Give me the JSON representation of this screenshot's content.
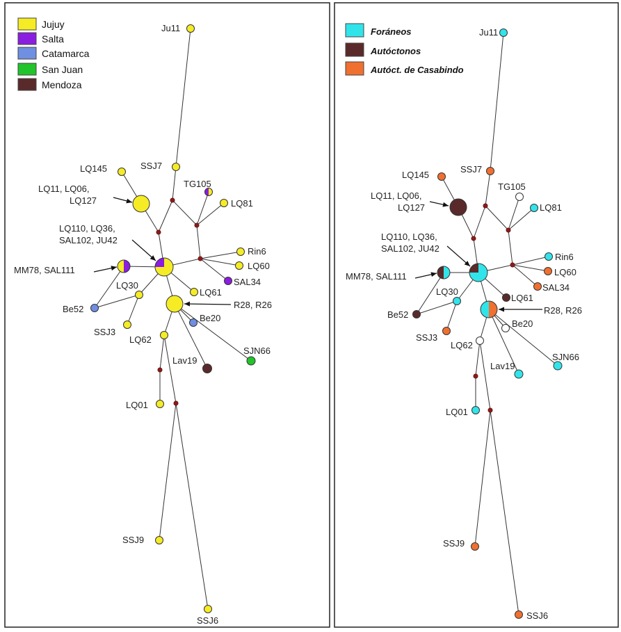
{
  "colors": {
    "jujuy": "#f5ec25",
    "salta": "#8b1de0",
    "catamarca": "#6f8fe0",
    "san_juan": "#21c42a",
    "mendoza": "#5a2a2a",
    "foraneos": "#31e4ea",
    "autoctonos": "#5a2a2a",
    "casabindo": "#f07030",
    "unknown": "#ffffff",
    "median": "#8b1a1a"
  },
  "left_legend": {
    "items": [
      {
        "label": "Jujuy",
        "color_key": "jujuy"
      },
      {
        "label": "Salta",
        "color_key": "salta"
      },
      {
        "label": "Catamarca",
        "color_key": "catamarca"
      },
      {
        "label": "San Juan",
        "color_key": "san_juan"
      },
      {
        "label": "Mendoza",
        "color_key": "mendoza"
      }
    ]
  },
  "right_legend": {
    "items": [
      {
        "label": "Foráneos",
        "color_key": "foraneos"
      },
      {
        "label": "Autóctonos",
        "color_key": "autoctonos"
      },
      {
        "label": "Autóct. de Casabindo",
        "color_key": "casabindo"
      }
    ]
  },
  "labels": {
    "ju11": "Ju11",
    "ssj7": "SSJ7",
    "lq145": "LQ145",
    "tg105": "TG105",
    "lq11_line1": "LQ11, LQ06,",
    "lq11_line2": "LQ127",
    "lq81": "LQ81",
    "lq110_line1": "LQ110, LQ36,",
    "lq110_line2": "SAL102, JU42",
    "rin6": "Rin6",
    "mm78": "MM78, SAL111",
    "lq60": "LQ60",
    "lq30": "LQ30",
    "sal34": "SAL34",
    "lq61": "LQ61",
    "be52": "Be52",
    "r28": "R28, R26",
    "be20": "Be20",
    "ssj3": "SSJ3",
    "lq62": "LQ62",
    "sjn66": "SJN66",
    "lav19": "Lav19",
    "lq01": "LQ01",
    "ssj9": "SSJ9",
    "ssj6": "SSJ6"
  }
}
